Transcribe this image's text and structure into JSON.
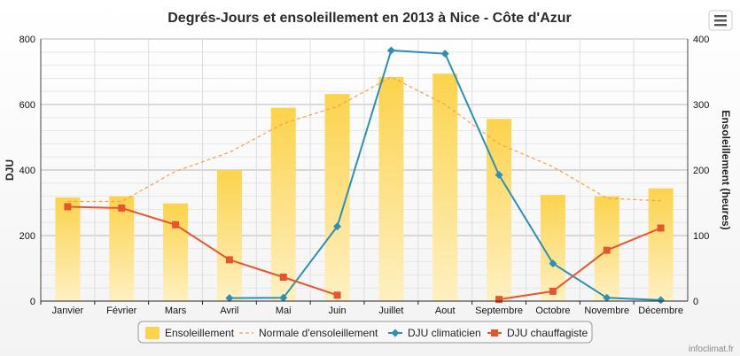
{
  "chart_data": {
    "type": "bar",
    "title": "Degrés-Jours et ensoleillement en 2013 à Nice - Côte d'Azur",
    "categories": [
      "Janvier",
      "Février",
      "Mars",
      "Avril",
      "Mai",
      "Juin",
      "Juillet",
      "Aout",
      "Septembre",
      "Octobre",
      "Novembre",
      "Décembre"
    ],
    "left_axis": {
      "title": "DJU",
      "min": 0,
      "max": 800,
      "ticks": [
        0,
        200,
        400,
        600,
        800
      ]
    },
    "right_axis": {
      "title": "Ensoleillement (heures)",
      "min": 0,
      "max": 400,
      "ticks": [
        0,
        100,
        200,
        300,
        400
      ]
    },
    "series": [
      {
        "name": "Ensoleillement",
        "type": "column",
        "axis": "right",
        "color": "#fcd34d",
        "values": [
          158,
          160,
          149,
          200,
          295,
          316,
          342,
          347,
          278,
          162,
          160,
          172
        ]
      },
      {
        "name": "Normale d'ensoleillement",
        "type": "dashed-line",
        "axis": "right",
        "color": "#f4a04a",
        "values": [
          152,
          152,
          198,
          227,
          271,
          297,
          342,
          300,
          240,
          205,
          157,
          153
        ]
      },
      {
        "name": "DJU climaticien",
        "type": "line",
        "axis": "left",
        "color": "#2f8fb3",
        "values": [
          null,
          null,
          null,
          9,
          10,
          228,
          765,
          755,
          385,
          115,
          10,
          3
        ]
      },
      {
        "name": "DJU chauffagiste",
        "type": "line",
        "axis": "left",
        "color": "#e4572e",
        "values": [
          288,
          284,
          233,
          126,
          73,
          18,
          null,
          null,
          5,
          30,
          155,
          223
        ]
      }
    ],
    "legend_position": "bottom",
    "credits": "infoclimat.fr"
  },
  "menu_icon": "hamburger-menu-icon"
}
